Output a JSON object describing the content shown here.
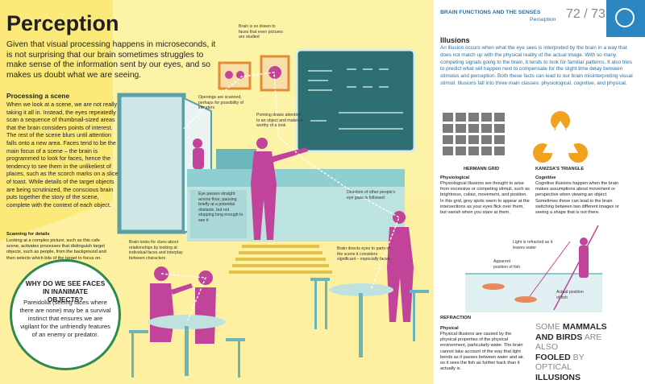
{
  "left_page": {
    "title": "Perception",
    "intro": "Given that visual processing happens in microseconds, it is not surprising that our brain sometimes struggles to make sense of the information sent by our eyes, and so makes us doubt what we are seeing.",
    "section": {
      "heading": "Processing a scene",
      "body": "When we look at a scene, we are not really taking it all in. Instead, the eyes repeatedly scan a sequence of thumbnail-sized areas that the brain considers points of interest. The rest of the scene blurs until attention falls onto a new area. Faces tend to be the main focus of a scene – the brain is programmed to look for faces, hence the tendency to see them in the unlikeliest of places, such as the scorch marks on a slice of toast. While details of the target objects are being scrutinized, the conscious brain puts together the story of the scene, complete with the context of each object."
    },
    "scanning": {
      "heading": "Scanning for details",
      "body": "Looking at a complex picture, such as this cafe scene, activates processes that distinguish target objects, such as people, from the background and then selects which bits of the target to focus on."
    },
    "callouts": [
      "Brain is so drawn to faces that even pictures are studied",
      "Openings are scanned, perhaps for possibility of intruders",
      "Pointing draws attention to an object and makes it worthy of a look",
      "Direction of other people's eye gaze is followed",
      "Eye passes straight across floor, pausing briefly at a potential obstacle, but not stopping long enough to see it",
      "Brain looks for clues about relationships by looking at individual faces and interplay between characters",
      "Brain directs eyes to parts of the scene it considers significant – especially faces"
    ],
    "question": {
      "heading": "WHY DO WE SEE FACES IN INANIMATE OBJECTS?",
      "body": "Pareidolia (seeing faces where there are none) may be a survival instinct that ensures we are vigilant for the unfriendly features of an enemy or predator."
    }
  },
  "right_page": {
    "header": {
      "section": "BRAIN FUNCTIONS AND THE SENSES",
      "topic": "Perception",
      "pages": "72 / 73"
    },
    "illusions": {
      "heading": "Illusions",
      "body": "An illusion occurs when what the eye sees is interpreted by the brain in a way that does not match up with the physical reality of the actual image. With so many competing signals going to the brain, it tends to look for familiar patterns. It also tries to predict what will happen next to compensate for the slight time delay between stimulus and perception. Both these facts can lead to our brain misinterpreting visual stimuli. Illusions fall into three main classes: physiological, cognitive, and physical."
    },
    "figures": [
      "HERMANN GRID",
      "KANIZSA'S TRIANGLE"
    ],
    "physiological": {
      "heading": "Physiological",
      "body": "Physiological illusions are thought to arise from excessive or competing stimuli, such as brightness, colour, movement, and position. In this grid, grey spots seem to appear at the intersections as your eyes flick over them, but vanish when you stare at them."
    },
    "cognitive": {
      "heading": "Cognitive",
      "body": "Cognitive illusions happen when the brain makes assumptions about movement or perspective when viewing an object. Sometimes these can lead to the brain switching between two different images or seeing a shape that is not there."
    },
    "refraction": {
      "title": "REFRACTION",
      "labels": [
        "Light is refracted as it leaves water",
        "Apparent position of fish",
        "Actual position of fish"
      ]
    },
    "physical": {
      "heading": "Physical",
      "body": "Physical illusions are caused by the physical properties of the physical environment, particularly water. The brain cannot take account of the way that light bends as it passes between water and air, so it sees the fish as further back than it actually is."
    },
    "fact": [
      "SOME",
      "MAMMALS",
      "AND BIRDS",
      "ARE ALSO",
      "FOOLED",
      "BY",
      "OPTICAL",
      "ILLUSIONS"
    ]
  }
}
